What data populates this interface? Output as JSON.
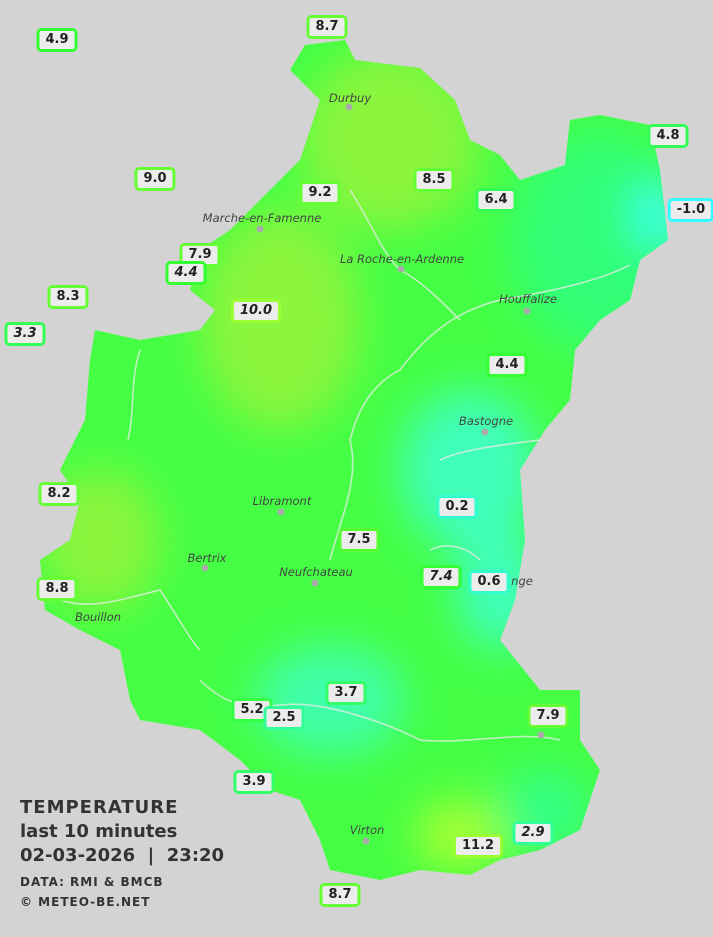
{
  "legend": {
    "title": "TEMPERATURE",
    "period": "last 10 minutes",
    "datetime": "02-03-2026  |  23:20",
    "source": "DATA: RMI & BMCB",
    "copyright": "© METEO-BE.NET"
  },
  "colors": {
    "background": "#d3d3d3",
    "base_green": "#44ff44",
    "warm": "#8cf53e",
    "cool": "#33ff77",
    "cold": "#40ffbb",
    "very_cold": "#40ffff"
  },
  "towns": [
    "Durbuy",
    "Marche-en-Famenne",
    "La Roche-en-Ardenne",
    "Houffalize",
    "Bastogne",
    "Libramont",
    "Bertrix",
    "Neufchateau",
    "nge",
    "Bouillon",
    "Virton"
  ],
  "stations": [
    {
      "value": "4.9",
      "color": "#33ff33"
    },
    {
      "value": "8.7",
      "color": "#66ff33"
    },
    {
      "value": "9.0",
      "color": "#66ff33"
    },
    {
      "value": "9.2",
      "color": "#66ff33"
    },
    {
      "value": "8.5",
      "color": "#66ff33"
    },
    {
      "value": "6.4",
      "color": "#33ff55"
    },
    {
      "value": "4.8",
      "color": "#33ff55"
    },
    {
      "value": "-1.0",
      "color": "#33ffff"
    },
    {
      "value": "7.9",
      "color": "#66ff33"
    },
    {
      "value": "4.4",
      "color": "#33ff33",
      "italic": true
    },
    {
      "value": "8.3",
      "color": "#66ff33"
    },
    {
      "value": "3.3",
      "color": "#33ff55",
      "italic": true
    },
    {
      "value": "10.0",
      "color": "#99ff33",
      "italic": true
    },
    {
      "value": "4.4",
      "color": "#33ff33"
    },
    {
      "value": "0.2",
      "color": "#33ffcc"
    },
    {
      "value": "8.2",
      "color": "#66ff33"
    },
    {
      "value": "7.5",
      "color": "#55ff33"
    },
    {
      "value": "7.4",
      "color": "#33ff33",
      "italic": true
    },
    {
      "value": "0.6",
      "color": "#33ffcc"
    },
    {
      "value": "8.8",
      "color": "#66ff33"
    },
    {
      "value": "3.7",
      "color": "#33ff66"
    },
    {
      "value": "5.2",
      "color": "#33ff44"
    },
    {
      "value": "2.5",
      "color": "#33ff99"
    },
    {
      "value": "7.9",
      "color": "#66ff33"
    },
    {
      "value": "3.9",
      "color": "#33ff66"
    },
    {
      "value": "11.2",
      "color": "#99ff33"
    },
    {
      "value": "2.9",
      "color": "#33ff99",
      "italic": true
    },
    {
      "value": "8.7",
      "color": "#66ff33"
    }
  ]
}
